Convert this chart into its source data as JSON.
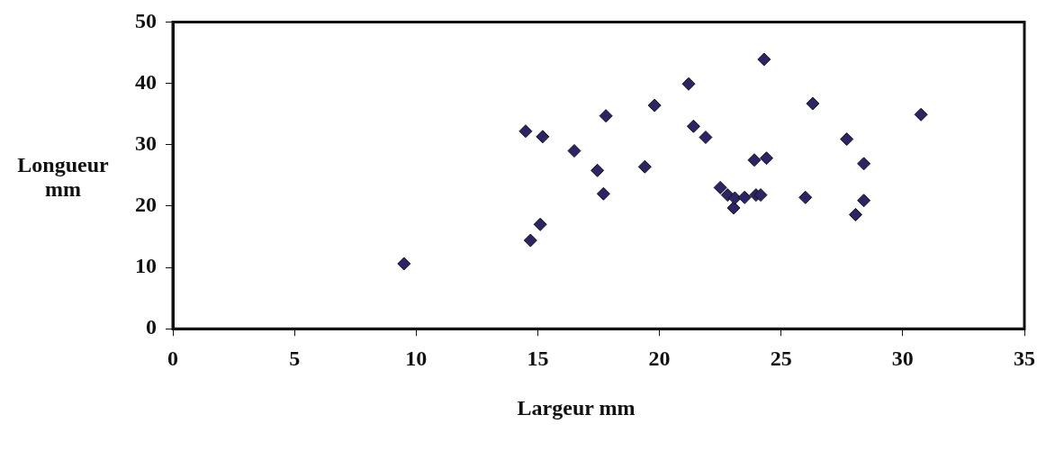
{
  "chart_data": {
    "type": "scatter",
    "xlabel": "Largeur mm",
    "ylabel": "Longueur mm",
    "marker": "diamond",
    "grid": false,
    "legend": false,
    "x": [
      9.5,
      14.5,
      14.7,
      15.1,
      15.2,
      16.5,
      17.45,
      17.7,
      17.8,
      19.4,
      19.8,
      21.2,
      21.4,
      21.9,
      22.5,
      22.8,
      23.05,
      23.1,
      23.5,
      23.9,
      23.97,
      24.16,
      24.3,
      24.4,
      26.0,
      26.3,
      27.7,
      28.06,
      28.4,
      28.4,
      30.75
    ],
    "series": [
      {
        "color": "#2b2468",
        "values": [
          10.6,
          32.2,
          14.4,
          17.0,
          31.3,
          29.0,
          25.8,
          22.0,
          34.7,
          26.4,
          36.4,
          39.9,
          33.0,
          31.2,
          23.0,
          21.8,
          19.7,
          21.3,
          21.4,
          27.5,
          21.8,
          21.8,
          43.9,
          27.8,
          21.4,
          36.7,
          30.9,
          18.6,
          26.9,
          20.9,
          34.9
        ]
      }
    ],
    "xlim": [
      0,
      35
    ],
    "xticks": [
      0,
      5,
      10,
      15,
      20,
      25,
      30,
      35
    ],
    "ylim": [
      0,
      50
    ],
    "yticks": [
      0,
      10,
      20,
      30,
      40,
      50
    ]
  }
}
